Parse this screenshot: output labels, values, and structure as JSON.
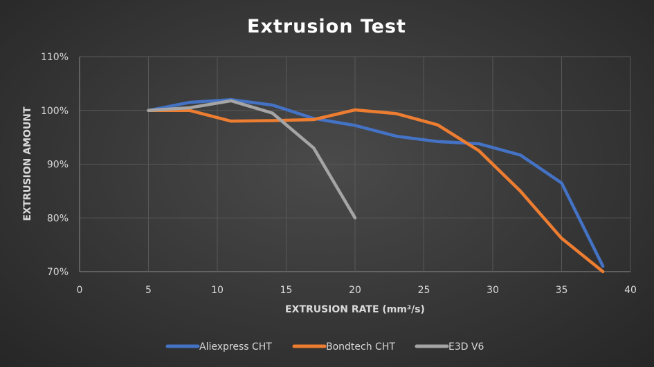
{
  "chart_data": {
    "type": "line",
    "title": "Extrusion Test",
    "xlabel": "EXTRUSION RATE (mm³/s)",
    "ylabel": "EXTRUSION AMOUNT",
    "xlim": [
      0,
      40
    ],
    "ylim": [
      70,
      110
    ],
    "x_ticks": [
      0,
      5,
      10,
      15,
      20,
      25,
      30,
      35,
      40
    ],
    "y_ticks": [
      70,
      80,
      90,
      100,
      110
    ],
    "y_tick_suffix": "%",
    "grid": true,
    "legend_position": "bottom",
    "series": [
      {
        "name": "Aliexpress CHT",
        "color": "#4472c4",
        "x": [
          5,
          8,
          11,
          14,
          17,
          20,
          23,
          26,
          29,
          32,
          35,
          38
        ],
        "y": [
          100,
          101.5,
          102,
          101,
          98.5,
          97.2,
          95.2,
          94.2,
          93.8,
          91.7,
          86.5,
          71
        ]
      },
      {
        "name": "Bondtech CHT",
        "color": "#ed7d31",
        "x": [
          5,
          8,
          11,
          14,
          17,
          20,
          23,
          26,
          29,
          32,
          35,
          38
        ],
        "y": [
          100,
          100,
          98,
          98.1,
          98.3,
          100.1,
          99.4,
          97.3,
          92.5,
          85,
          76.2,
          70
        ]
      },
      {
        "name": "E3D V6",
        "color": "#a5a5a5",
        "x": [
          5,
          8,
          11,
          14,
          17,
          20
        ],
        "y": [
          100,
          100.5,
          101.8,
          99.5,
          93,
          80
        ]
      }
    ]
  }
}
